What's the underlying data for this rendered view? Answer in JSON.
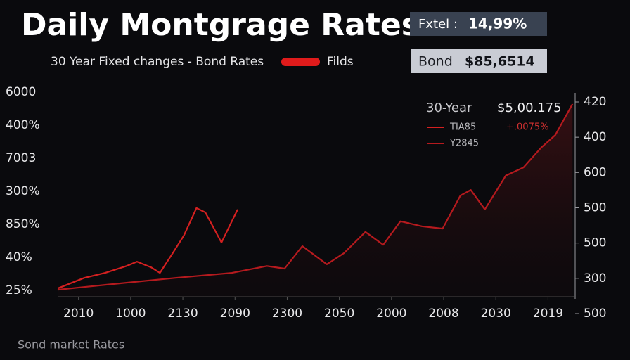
{
  "chart_data": {
    "type": "line",
    "title": "Daily Montgrage Rates",
    "subtitle": "30 Year Fixed changes - Bond Rates",
    "legend_label": "Filds",
    "badges": [
      {
        "label": "Fxtel :",
        "value_text": "14,99%"
      },
      {
        "label": "Bond",
        "value_text": "$85,6514"
      }
    ],
    "inset": {
      "title": "30-Year",
      "value": "$5,00.175",
      "change": "+.0075%"
    },
    "footer": "Sond market Rates",
    "xlim": [
      -0.4,
      9.52
    ],
    "xticks": [
      {
        "value": 0,
        "label": "2010"
      },
      {
        "value": 1,
        "label": "1000"
      },
      {
        "value": 2,
        "label": "2130"
      },
      {
        "value": 3,
        "label": "2090"
      },
      {
        "value": 4,
        "label": "2300"
      },
      {
        "value": 5,
        "label": "2050"
      },
      {
        "value": 6,
        "label": "2000"
      },
      {
        "value": 7,
        "label": "2008"
      },
      {
        "value": 8,
        "label": "2030"
      },
      {
        "value": 9,
        "label": "2019"
      }
    ],
    "ylim": [
      -0.19,
      6.23
    ],
    "yticks": [
      {
        "value": 0,
        "label": "25%"
      },
      {
        "value": 1,
        "label": "40%"
      },
      {
        "value": 2,
        "label": "850%"
      },
      {
        "value": 3,
        "label": "300%"
      },
      {
        "value": 4,
        "label": "7003"
      },
      {
        "value": 5,
        "label": "400%"
      },
      {
        "value": 6,
        "label": "6000"
      }
    ],
    "y2lim": [
      0,
      6
    ],
    "y2ticks": [
      {
        "value": 0,
        "label": "500"
      },
      {
        "value": 1,
        "label": "300"
      },
      {
        "value": 2,
        "label": "500"
      },
      {
        "value": 3,
        "label": "500"
      },
      {
        "value": 4,
        "label": "600"
      },
      {
        "value": 5,
        "label": "400"
      },
      {
        "value": 6,
        "label": "420"
      }
    ],
    "series": [
      {
        "name": "TIA85",
        "color": "#d42020",
        "x": [
          -0.4,
          0.11,
          0.51,
          0.92,
          1.12,
          1.39,
          1.56,
          1.79,
          2.02,
          2.26,
          2.43,
          2.74,
          3.05
        ],
        "values": [
          0.06,
          0.38,
          0.53,
          0.74,
          0.87,
          0.7,
          0.53,
          1.09,
          1.66,
          2.49,
          2.36,
          1.45,
          2.45
        ]
      },
      {
        "name": "Y2845",
        "color": "#b51a1e",
        "x": [
          -0.4,
          0.51,
          1.86,
          2.94,
          3.61,
          3.95,
          4.29,
          4.76,
          5.09,
          5.5,
          5.84,
          6.17,
          6.58,
          6.98,
          7.32,
          7.52,
          7.79,
          8.19,
          8.53,
          8.87,
          9.14,
          9.47
        ],
        "values": [
          0.02,
          0.17,
          0.38,
          0.53,
          0.74,
          0.66,
          1.34,
          0.79,
          1.13,
          1.77,
          1.38,
          2.09,
          1.94,
          1.87,
          2.87,
          3.04,
          2.45,
          3.47,
          3.72,
          4.32,
          4.7,
          5.64
        ]
      }
    ]
  }
}
